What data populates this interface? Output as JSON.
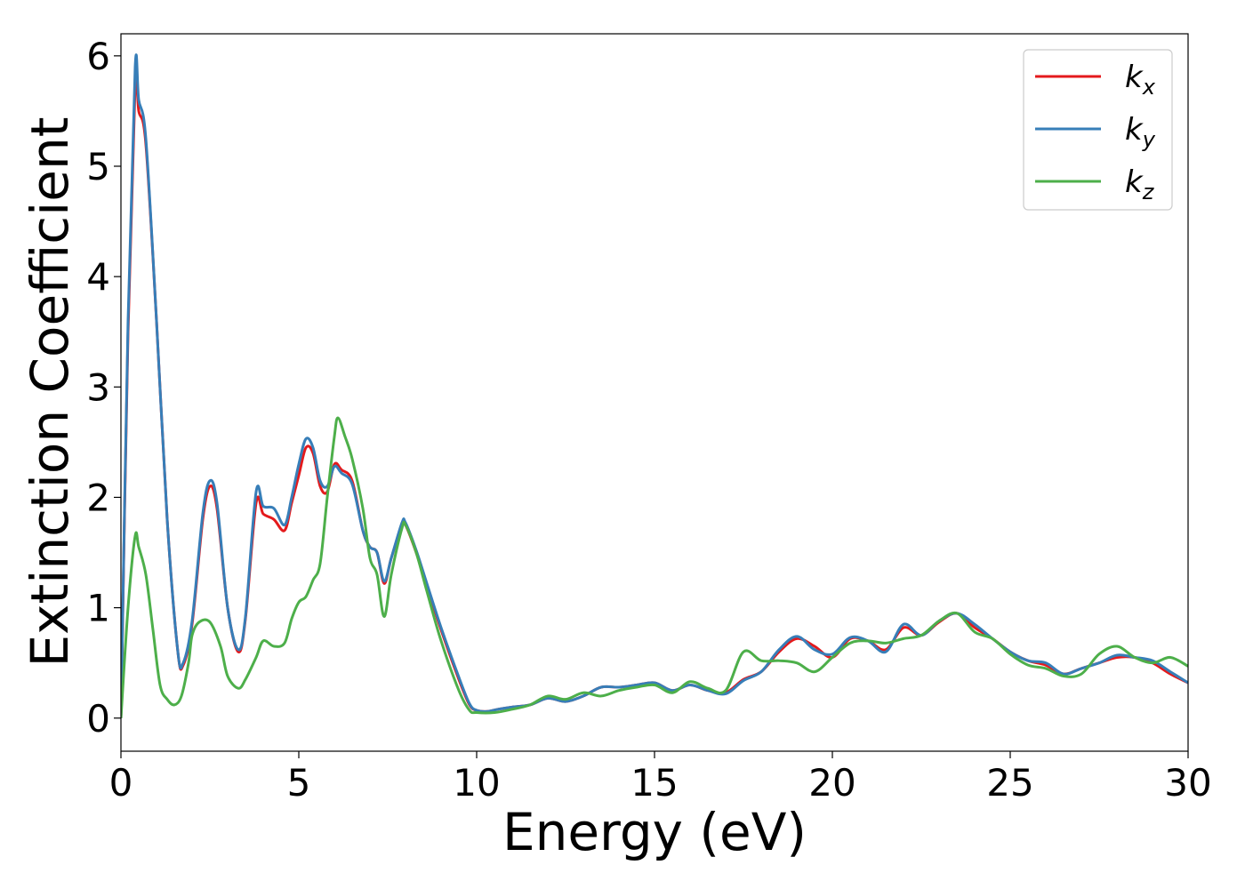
{
  "chart_data": {
    "type": "line",
    "title": "",
    "xlabel": "Energy (eV)",
    "ylabel": "Extinction Coefficient",
    "xlim": [
      0,
      30
    ],
    "ylim": [
      -0.3,
      6.2
    ],
    "xticks": [
      0,
      5,
      10,
      15,
      20,
      25,
      30
    ],
    "yticks": [
      0,
      1,
      2,
      3,
      4,
      5,
      6
    ],
    "grid": false,
    "legend_position": "top-right",
    "series": [
      {
        "name": "k_x",
        "label_main": "k",
        "label_sub": "x",
        "color": "#e41a1c",
        "x": [
          0,
          0.2,
          0.4,
          0.5,
          0.7,
          1.0,
          1.3,
          1.6,
          1.75,
          2.0,
          2.3,
          2.5,
          2.7,
          3.0,
          3.3,
          3.5,
          3.8,
          4.0,
          4.3,
          4.6,
          4.8,
          5.0,
          5.2,
          5.4,
          5.6,
          5.8,
          6.0,
          6.2,
          6.5,
          6.8,
          7.0,
          7.2,
          7.4,
          7.6,
          7.9,
          8.0,
          8.3,
          8.6,
          9.0,
          9.5,
          9.8,
          10.0,
          10.3,
          10.6,
          11.0,
          11.5,
          12.0,
          12.5,
          13.0,
          13.5,
          14.0,
          14.5,
          15.0,
          15.5,
          16.0,
          16.5,
          17.0,
          17.5,
          18.0,
          18.5,
          19.0,
          19.5,
          20.0,
          20.5,
          21.0,
          21.5,
          22.0,
          22.5,
          23.0,
          23.5,
          24.0,
          24.5,
          25.0,
          25.5,
          26.0,
          26.5,
          27.0,
          27.5,
          28.0,
          28.5,
          29.0,
          29.5,
          30.0
        ],
        "y": [
          0.0,
          3.5,
          5.75,
          5.5,
          5.2,
          3.6,
          1.8,
          0.6,
          0.48,
          0.85,
          1.8,
          2.1,
          1.9,
          1.0,
          0.6,
          0.9,
          1.95,
          1.85,
          1.8,
          1.7,
          1.95,
          2.2,
          2.45,
          2.4,
          2.1,
          2.05,
          2.3,
          2.25,
          2.15,
          1.7,
          1.55,
          1.5,
          1.22,
          1.45,
          1.75,
          1.75,
          1.5,
          1.2,
          0.8,
          0.35,
          0.12,
          0.07,
          0.06,
          0.08,
          0.1,
          0.12,
          0.18,
          0.15,
          0.2,
          0.28,
          0.28,
          0.3,
          0.32,
          0.25,
          0.3,
          0.25,
          0.23,
          0.35,
          0.42,
          0.6,
          0.72,
          0.65,
          0.55,
          0.72,
          0.7,
          0.62,
          0.82,
          0.75,
          0.87,
          0.95,
          0.82,
          0.72,
          0.6,
          0.52,
          0.48,
          0.4,
          0.45,
          0.5,
          0.55,
          0.55,
          0.5,
          0.4,
          0.32
        ]
      },
      {
        "name": "k_y",
        "label_main": "k",
        "label_sub": "y",
        "color": "#377eb8",
        "x": [
          0,
          0.2,
          0.4,
          0.5,
          0.7,
          1.0,
          1.3,
          1.6,
          1.75,
          2.0,
          2.3,
          2.5,
          2.7,
          3.0,
          3.3,
          3.5,
          3.8,
          4.0,
          4.3,
          4.6,
          4.8,
          5.0,
          5.2,
          5.4,
          5.6,
          5.8,
          6.0,
          6.2,
          6.5,
          6.8,
          7.0,
          7.2,
          7.4,
          7.6,
          7.9,
          8.0,
          8.3,
          8.6,
          9.0,
          9.5,
          9.8,
          10.0,
          10.3,
          10.6,
          11.0,
          11.5,
          12.0,
          12.5,
          13.0,
          13.5,
          14.0,
          14.5,
          15.0,
          15.5,
          16.0,
          16.5,
          17.0,
          17.5,
          18.0,
          18.5,
          19.0,
          19.5,
          20.0,
          20.5,
          21.0,
          21.5,
          22.0,
          22.5,
          23.0,
          23.5,
          24.0,
          24.5,
          25.0,
          25.5,
          26.0,
          26.5,
          27.0,
          27.5,
          28.0,
          28.5,
          29.0,
          29.5,
          30.0
        ],
        "y": [
          0.0,
          3.6,
          5.9,
          5.6,
          5.25,
          3.6,
          1.8,
          0.6,
          0.5,
          0.88,
          1.85,
          2.15,
          1.95,
          1.0,
          0.62,
          0.92,
          2.05,
          1.92,
          1.9,
          1.75,
          2.0,
          2.3,
          2.53,
          2.45,
          2.15,
          2.1,
          2.28,
          2.22,
          2.12,
          1.7,
          1.55,
          1.5,
          1.24,
          1.45,
          1.77,
          1.77,
          1.52,
          1.22,
          0.82,
          0.37,
          0.13,
          0.07,
          0.06,
          0.08,
          0.1,
          0.12,
          0.18,
          0.15,
          0.2,
          0.28,
          0.28,
          0.3,
          0.32,
          0.25,
          0.3,
          0.25,
          0.22,
          0.34,
          0.42,
          0.62,
          0.74,
          0.62,
          0.58,
          0.73,
          0.7,
          0.6,
          0.85,
          0.75,
          0.88,
          0.95,
          0.85,
          0.72,
          0.6,
          0.52,
          0.5,
          0.4,
          0.45,
          0.5,
          0.57,
          0.55,
          0.52,
          0.42,
          0.32
        ]
      },
      {
        "name": "k_z",
        "label_main": "k",
        "label_sub": "z",
        "color": "#4daf4a",
        "x": [
          0,
          0.2,
          0.4,
          0.5,
          0.7,
          0.9,
          1.1,
          1.3,
          1.5,
          1.7,
          1.9,
          2.0,
          2.2,
          2.5,
          2.8,
          3.0,
          3.3,
          3.5,
          3.8,
          4.0,
          4.3,
          4.6,
          4.8,
          5.0,
          5.2,
          5.4,
          5.6,
          5.8,
          6.0,
          6.1,
          6.3,
          6.5,
          6.8,
          7.0,
          7.2,
          7.4,
          7.6,
          7.9,
          8.0,
          8.3,
          8.6,
          9.0,
          9.5,
          9.8,
          10.0,
          10.5,
          11.0,
          11.5,
          12.0,
          12.5,
          13.0,
          13.5,
          14.0,
          14.5,
          15.0,
          15.5,
          16.0,
          16.5,
          17.0,
          17.5,
          18.0,
          18.5,
          19.0,
          19.5,
          20.0,
          20.5,
          21.0,
          21.5,
          22.0,
          22.5,
          23.0,
          23.5,
          24.0,
          24.5,
          25.0,
          25.5,
          26.0,
          26.5,
          27.0,
          27.5,
          28.0,
          28.5,
          29.0,
          29.5,
          30.0
        ],
        "y": [
          0.0,
          1.0,
          1.65,
          1.55,
          1.3,
          0.8,
          0.3,
          0.17,
          0.12,
          0.2,
          0.5,
          0.75,
          0.87,
          0.87,
          0.65,
          0.38,
          0.27,
          0.35,
          0.55,
          0.7,
          0.65,
          0.68,
          0.9,
          1.05,
          1.1,
          1.25,
          1.4,
          2.0,
          2.55,
          2.72,
          2.55,
          2.35,
          1.9,
          1.45,
          1.3,
          0.92,
          1.3,
          1.72,
          1.75,
          1.5,
          1.15,
          0.7,
          0.25,
          0.07,
          0.05,
          0.05,
          0.08,
          0.12,
          0.2,
          0.17,
          0.23,
          0.2,
          0.25,
          0.28,
          0.3,
          0.23,
          0.33,
          0.27,
          0.25,
          0.6,
          0.52,
          0.52,
          0.5,
          0.42,
          0.55,
          0.68,
          0.7,
          0.68,
          0.72,
          0.75,
          0.88,
          0.95,
          0.78,
          0.72,
          0.58,
          0.48,
          0.45,
          0.38,
          0.4,
          0.58,
          0.65,
          0.55,
          0.5,
          0.55,
          0.47
        ]
      }
    ]
  }
}
